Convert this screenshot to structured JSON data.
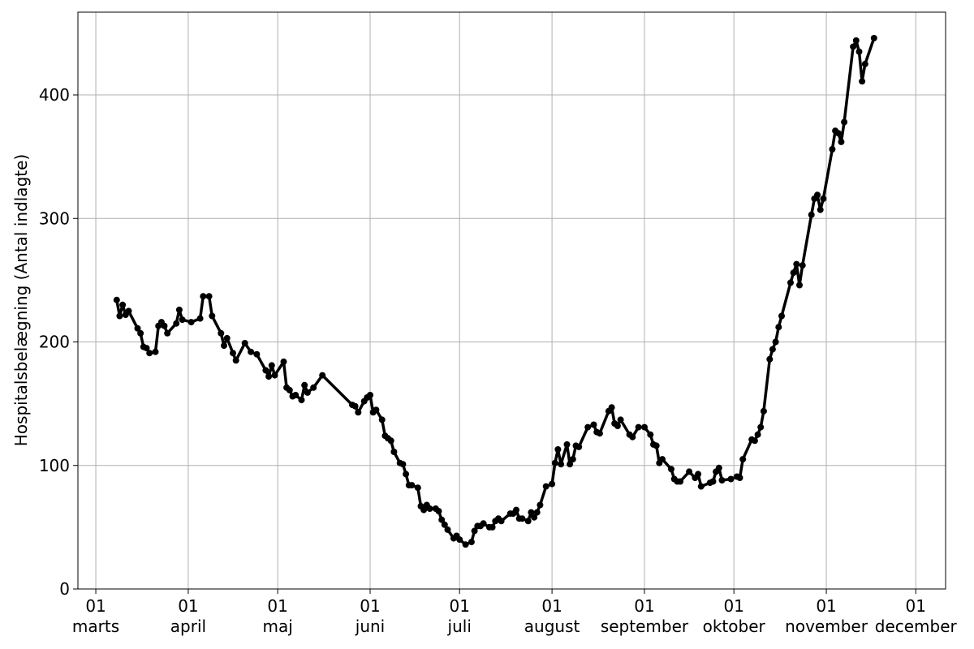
{
  "chart_data": {
    "type": "line",
    "title": "",
    "xlabel": "",
    "ylabel": "Hospitalsbelægning (Antal indlagte)",
    "grid": true,
    "legend": "none",
    "ylim": [
      0,
      467
    ],
    "yticks": [
      0,
      100,
      200,
      300,
      400
    ],
    "xlim": [
      "2020-02-24",
      "2020-12-11"
    ],
    "xticks": [
      {
        "date": "2020-03-01",
        "day": "01",
        "month": "marts"
      },
      {
        "date": "2020-04-01",
        "day": "01",
        "month": "april"
      },
      {
        "date": "2020-05-01",
        "day": "01",
        "month": "maj"
      },
      {
        "date": "2020-06-01",
        "day": "01",
        "month": "juni"
      },
      {
        "date": "2020-07-01",
        "day": "01",
        "month": "juli"
      },
      {
        "date": "2020-08-01",
        "day": "01",
        "month": "august"
      },
      {
        "date": "2020-09-01",
        "day": "01",
        "month": "september"
      },
      {
        "date": "2020-10-01",
        "day": "01",
        "month": "oktober"
      },
      {
        "date": "2020-11-01",
        "day": "01",
        "month": "november"
      },
      {
        "date": "2020-12-01",
        "day": "01",
        "month": "december"
      }
    ],
    "series": [
      {
        "color": "#000000",
        "marker": "circle",
        "points": [
          [
            "2020-03-08",
            234
          ],
          [
            "2020-03-09",
            221
          ],
          [
            "2020-03-10",
            230
          ],
          [
            "2020-03-11",
            222
          ],
          [
            "2020-03-12",
            225
          ],
          [
            "2020-03-15",
            211
          ],
          [
            "2020-03-16",
            207
          ],
          [
            "2020-03-17",
            196
          ],
          [
            "2020-03-18",
            195
          ],
          [
            "2020-03-19",
            191
          ],
          [
            "2020-03-21",
            192
          ],
          [
            "2020-03-22",
            213
          ],
          [
            "2020-03-23",
            216
          ],
          [
            "2020-03-24",
            213
          ],
          [
            "2020-03-25",
            207
          ],
          [
            "2020-03-28",
            215
          ],
          [
            "2020-03-29",
            226
          ],
          [
            "2020-03-30",
            218
          ],
          [
            "2020-04-02",
            216
          ],
          [
            "2020-04-05",
            219
          ],
          [
            "2020-04-06",
            237
          ],
          [
            "2020-04-08",
            237
          ],
          [
            "2020-04-09",
            221
          ],
          [
            "2020-04-12",
            207
          ],
          [
            "2020-04-13",
            197
          ],
          [
            "2020-04-14",
            203
          ],
          [
            "2020-04-16",
            191
          ],
          [
            "2020-04-17",
            185
          ],
          [
            "2020-04-20",
            199
          ],
          [
            "2020-04-22",
            192
          ],
          [
            "2020-04-24",
            190
          ],
          [
            "2020-04-27",
            177
          ],
          [
            "2020-04-28",
            172
          ],
          [
            "2020-04-29",
            181
          ],
          [
            "2020-04-30",
            173
          ],
          [
            "2020-05-03",
            184
          ],
          [
            "2020-05-04",
            163
          ],
          [
            "2020-05-05",
            161
          ],
          [
            "2020-05-06",
            156
          ],
          [
            "2020-05-07",
            157
          ],
          [
            "2020-05-09",
            153
          ],
          [
            "2020-05-10",
            165
          ],
          [
            "2020-05-11",
            159
          ],
          [
            "2020-05-13",
            163
          ],
          [
            "2020-05-16",
            173
          ],
          [
            "2020-05-26",
            149
          ],
          [
            "2020-05-27",
            148
          ],
          [
            "2020-05-28",
            143
          ],
          [
            "2020-05-30",
            152
          ],
          [
            "2020-05-31",
            155
          ],
          [
            "2020-06-01",
            157
          ],
          [
            "2020-06-02",
            143
          ],
          [
            "2020-06-03",
            145
          ],
          [
            "2020-06-05",
            137
          ],
          [
            "2020-06-06",
            124
          ],
          [
            "2020-06-07",
            122
          ],
          [
            "2020-06-08",
            120
          ],
          [
            "2020-06-09",
            111
          ],
          [
            "2020-06-11",
            102
          ],
          [
            "2020-06-12",
            101
          ],
          [
            "2020-06-13",
            93
          ],
          [
            "2020-06-14",
            84
          ],
          [
            "2020-06-15",
            84
          ],
          [
            "2020-06-17",
            82
          ],
          [
            "2020-06-18",
            67
          ],
          [
            "2020-06-19",
            64
          ],
          [
            "2020-06-20",
            68
          ],
          [
            "2020-06-21",
            65
          ],
          [
            "2020-06-23",
            65
          ],
          [
            "2020-06-24",
            63
          ],
          [
            "2020-06-25",
            56
          ],
          [
            "2020-06-26",
            52
          ],
          [
            "2020-06-27",
            48
          ],
          [
            "2020-06-29",
            41
          ],
          [
            "2020-06-30",
            43
          ],
          [
            "2020-07-01",
            40
          ],
          [
            "2020-07-03",
            36
          ],
          [
            "2020-07-05",
            38
          ],
          [
            "2020-07-06",
            47
          ],
          [
            "2020-07-07",
            51
          ],
          [
            "2020-07-08",
            51
          ],
          [
            "2020-07-09",
            53
          ],
          [
            "2020-07-11",
            50
          ],
          [
            "2020-07-12",
            50
          ],
          [
            "2020-07-13",
            55
          ],
          [
            "2020-07-14",
            57
          ],
          [
            "2020-07-15",
            55
          ],
          [
            "2020-07-18",
            61
          ],
          [
            "2020-07-19",
            61
          ],
          [
            "2020-07-20",
            64
          ],
          [
            "2020-07-21",
            57
          ],
          [
            "2020-07-22",
            57
          ],
          [
            "2020-07-24",
            55
          ],
          [
            "2020-07-25",
            62
          ],
          [
            "2020-07-26",
            58
          ],
          [
            "2020-07-27",
            62
          ],
          [
            "2020-07-28",
            68
          ],
          [
            "2020-07-30",
            83
          ],
          [
            "2020-08-01",
            85
          ],
          [
            "2020-08-02",
            102
          ],
          [
            "2020-08-03",
            113
          ],
          [
            "2020-08-04",
            101
          ],
          [
            "2020-08-06",
            117
          ],
          [
            "2020-08-07",
            101
          ],
          [
            "2020-08-08",
            105
          ],
          [
            "2020-08-09",
            116
          ],
          [
            "2020-08-10",
            115
          ],
          [
            "2020-08-13",
            131
          ],
          [
            "2020-08-15",
            133
          ],
          [
            "2020-08-16",
            127
          ],
          [
            "2020-08-17",
            126
          ],
          [
            "2020-08-20",
            144
          ],
          [
            "2020-08-21",
            147
          ],
          [
            "2020-08-22",
            134
          ],
          [
            "2020-08-23",
            132
          ],
          [
            "2020-08-24",
            137
          ],
          [
            "2020-08-27",
            125
          ],
          [
            "2020-08-28",
            123
          ],
          [
            "2020-08-30",
            131
          ],
          [
            "2020-09-01",
            131
          ],
          [
            "2020-09-03",
            125
          ],
          [
            "2020-09-04",
            117
          ],
          [
            "2020-09-05",
            116
          ],
          [
            "2020-09-06",
            102
          ],
          [
            "2020-09-07",
            105
          ],
          [
            "2020-09-10",
            97
          ],
          [
            "2020-09-11",
            89
          ],
          [
            "2020-09-12",
            87
          ],
          [
            "2020-09-13",
            87
          ],
          [
            "2020-09-16",
            95
          ],
          [
            "2020-09-18",
            90
          ],
          [
            "2020-09-19",
            93
          ],
          [
            "2020-09-20",
            83
          ],
          [
            "2020-09-23",
            86
          ],
          [
            "2020-09-24",
            87
          ],
          [
            "2020-09-25",
            95
          ],
          [
            "2020-09-26",
            98
          ],
          [
            "2020-09-27",
            88
          ],
          [
            "2020-09-30",
            89
          ],
          [
            "2020-10-02",
            91
          ],
          [
            "2020-10-03",
            90
          ],
          [
            "2020-10-04",
            105
          ],
          [
            "2020-10-07",
            121
          ],
          [
            "2020-10-08",
            120
          ],
          [
            "2020-10-09",
            125
          ],
          [
            "2020-10-10",
            131
          ],
          [
            "2020-10-11",
            144
          ],
          [
            "2020-10-13",
            186
          ],
          [
            "2020-10-14",
            194
          ],
          [
            "2020-10-15",
            200
          ],
          [
            "2020-10-16",
            212
          ],
          [
            "2020-10-17",
            221
          ],
          [
            "2020-10-20",
            248
          ],
          [
            "2020-10-21",
            256
          ],
          [
            "2020-10-22",
            263
          ],
          [
            "2020-10-23",
            246
          ],
          [
            "2020-10-24",
            262
          ],
          [
            "2020-10-27",
            303
          ],
          [
            "2020-10-28",
            316
          ],
          [
            "2020-10-29",
            319
          ],
          [
            "2020-10-30",
            307
          ],
          [
            "2020-10-31",
            316
          ],
          [
            "2020-11-03",
            356
          ],
          [
            "2020-11-04",
            371
          ],
          [
            "2020-11-05",
            369
          ],
          [
            "2020-11-06",
            362
          ],
          [
            "2020-11-07",
            378
          ],
          [
            "2020-11-10",
            439
          ],
          [
            "2020-11-11",
            444
          ],
          [
            "2020-11-12",
            435
          ],
          [
            "2020-11-13",
            411
          ],
          [
            "2020-11-14",
            425
          ],
          [
            "2020-11-17",
            446
          ]
        ]
      }
    ]
  }
}
